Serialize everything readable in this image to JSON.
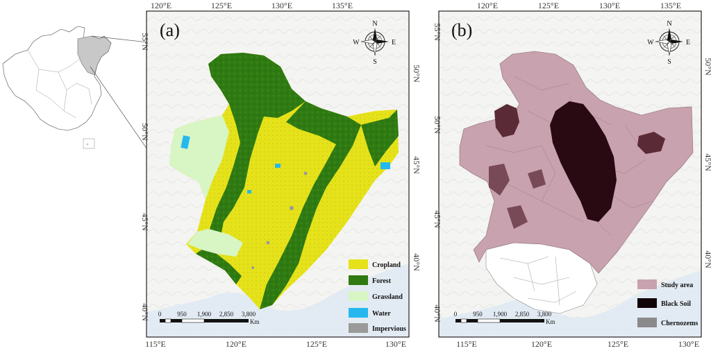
{
  "inset_map": {
    "label": "China outline locator"
  },
  "panel_a": {
    "letter": "(a)",
    "top_ticks": [
      "120°E",
      "125°E",
      "130°E",
      "135°E"
    ],
    "bottom_ticks": [
      "115°E",
      "120°E",
      "125°E",
      "130°E"
    ],
    "left_ticks": [
      "55°N",
      "50°N",
      "45°N",
      "40°N"
    ],
    "right_ticks": [
      "50°N",
      "45°N",
      "40°N"
    ],
    "compass": {
      "n": "N",
      "s": "S",
      "e": "E",
      "w": "W"
    },
    "scale": {
      "labels": [
        "0",
        "950",
        "1,900",
        "2,850",
        "3,800"
      ],
      "unit": "Km"
    },
    "legend": [
      {
        "label": "Cropland",
        "color": "#e6e21a"
      },
      {
        "label": "Forest",
        "color": "#2f7a12"
      },
      {
        "label": "Grassland",
        "color": "#d8f5c4"
      },
      {
        "label": "Water",
        "color": "#25b8ee"
      },
      {
        "label": "Impervious",
        "color": "#9a9a9a"
      }
    ]
  },
  "panel_b": {
    "letter": "(b)",
    "top_ticks": [
      "120°E",
      "125°E",
      "130°E",
      "135°E"
    ],
    "bottom_ticks": [
      "115°E",
      "120°E",
      "125°E",
      "130°E"
    ],
    "left_ticks": [
      "55°N",
      "50°N",
      "45°N",
      "40°N"
    ],
    "right_ticks": [
      "50°N",
      "45°N",
      "40°N"
    ],
    "compass": {
      "n": "N",
      "s": "S",
      "e": "E",
      "w": "W"
    },
    "scale": {
      "labels": [
        "0",
        "950",
        "1,900",
        "2,850",
        "3,800"
      ],
      "unit": "Km"
    },
    "legend": [
      {
        "label": "Study area",
        "color": "#c8a2ae"
      },
      {
        "label": "Black Soil",
        "color": "#120508"
      },
      {
        "label": "Chernozems",
        "color": "#8a8a8a"
      }
    ]
  }
}
